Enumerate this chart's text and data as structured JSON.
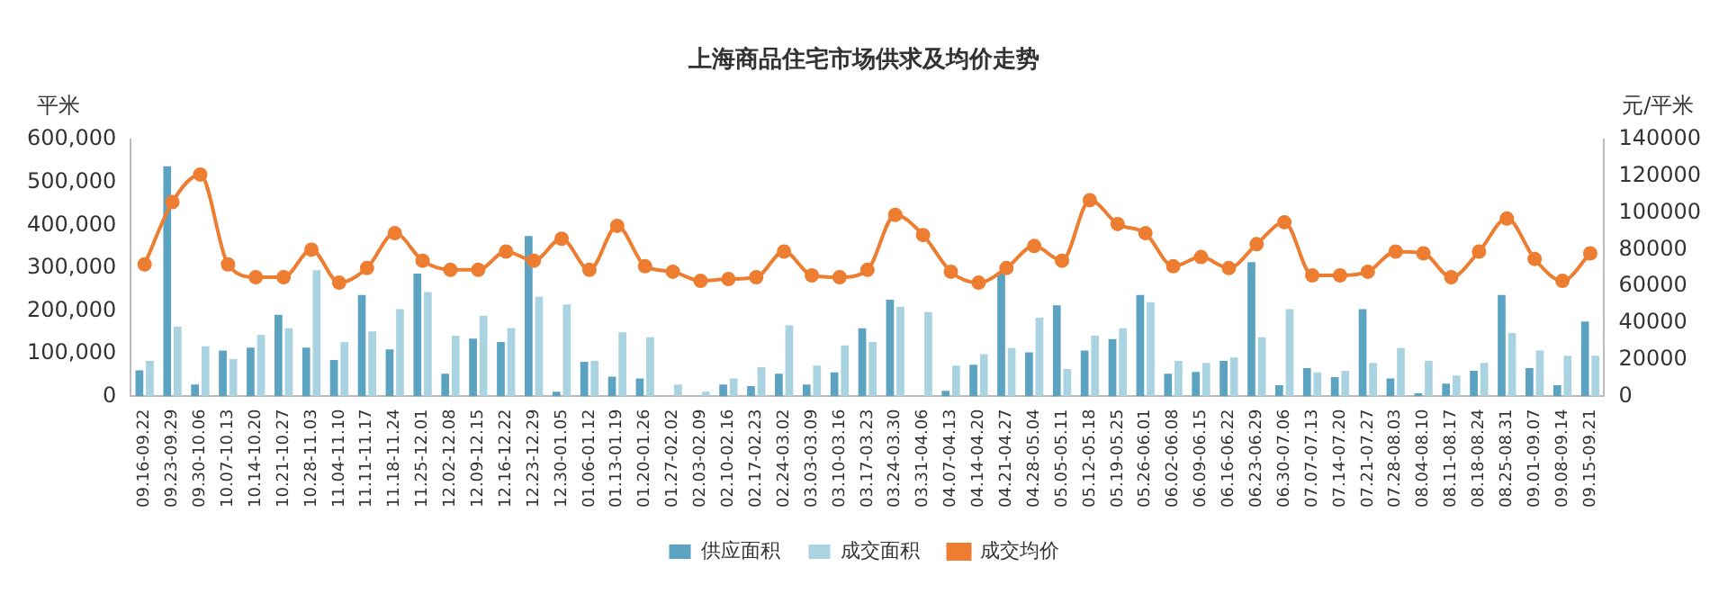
{
  "chart_data": {
    "type": "bar",
    "title": "上海商品住宅市场供求及均价走势",
    "ylabel": "平米",
    "y2label": "元/平米",
    "categories": [
      "09.16-09.22",
      "09.23-09.29",
      "09.30-10.06",
      "10.07-10.13",
      "10.14-10.20",
      "10.21-10.27",
      "10.28-11.03",
      "11.04-11.10",
      "11.11-11.17",
      "11.18-11.24",
      "11.25-12.01",
      "12.02-12.08",
      "12.09-12.15",
      "12.16-12.22",
      "12.23-12.29",
      "12.30-01.05",
      "01.06-01.12",
      "01.13-01.19",
      "01.20-01.26",
      "01.27-02.02",
      "02.03-02.09",
      "02.10-02.16",
      "02.17-02.23",
      "02.24-03.02",
      "03.03-03.09",
      "03.10-03.16",
      "03.17-03.23",
      "03.24-03.30",
      "03.31-04.06",
      "04.07-04.13",
      "04.14-04.20",
      "04.21-04.27",
      "04.28-05.04",
      "05.05-05.11",
      "05.12-05.18",
      "05.19-05.25",
      "05.26-06.01",
      "06.02-06.08",
      "06.09-06.15",
      "06.16-06.22",
      "06.23-06.29",
      "06.30-07.06",
      "07.07-07.13",
      "07.14-07.20",
      "07.21-07.27",
      "07.28-08.03",
      "08.04-08.10",
      "08.11-08.17",
      "08.18-08.24",
      "08.25-08.31",
      "09.01-09.07",
      "09.08-09.14",
      "09.15-09.21"
    ],
    "series": [
      {
        "name": "供应面积",
        "color": "#5ba3c1",
        "values": [
          61000,
          538000,
          28000,
          107000,
          114000,
          191000,
          114000,
          85000,
          237000,
          110000,
          287000,
          53000,
          135000,
          127000,
          375000,
          11000,
          81000,
          46000,
          42000,
          0,
          0,
          28000,
          24000,
          53000,
          28000,
          56000,
          159000,
          226000,
          0,
          13000,
          74000,
          289000,
          103000,
          213000,
          107000,
          134000,
          237000,
          53000,
          57000,
          83000,
          314000,
          26000,
          66000,
          45000,
          204000,
          42000,
          7000,
          30000,
          60000,
          237000,
          66000,
          26000,
          175000
        ]
      },
      {
        "name": "成交面积",
        "color": "#a9d3e0",
        "values": [
          83000,
          163000,
          117000,
          87000,
          144000,
          159000,
          295000,
          127000,
          152000,
          204000,
          244000,
          142000,
          188000,
          160000,
          233000,
          215000,
          83000,
          150000,
          138000,
          28000,
          11000,
          42000,
          68000,
          166000,
          72000,
          119000,
          127000,
          209000,
          197000,
          72000,
          99000,
          113000,
          184000,
          64000,
          142000,
          159000,
          220000,
          83000,
          78000,
          91000,
          138000,
          204000,
          56000,
          60000,
          78000,
          113000,
          83000,
          49000,
          78000,
          148000,
          107000,
          95000,
          95000
        ]
      },
      {
        "name": "成交均价",
        "type": "line",
        "axis": "y2",
        "color": "#ed7d31",
        "values": [
          72000,
          106000,
          121000,
          72000,
          65000,
          65000,
          80000,
          62000,
          70000,
          89000,
          74000,
          69000,
          69000,
          79000,
          74000,
          86000,
          69000,
          93000,
          71000,
          68000,
          63000,
          64000,
          65000,
          79000,
          66000,
          65000,
          69000,
          99000,
          88000,
          68000,
          62000,
          70000,
          82000,
          74000,
          107000,
          94000,
          89000,
          71000,
          76000,
          70000,
          83000,
          95000,
          66000,
          66000,
          68000,
          79000,
          78000,
          65000,
          79000,
          97000,
          75000,
          63000,
          78000
        ]
      }
    ],
    "ylim": [
      0,
      600000
    ],
    "yticks": [
      0,
      {
        "value": 100000,
        "label": "100,000"
      },
      {
        "value": 200000,
        "label": "200,000"
      },
      {
        "value": 300000,
        "label": "300,000"
      },
      {
        "value": 400000,
        "label": "400,000"
      },
      {
        "value": 500000,
        "label": "500,000"
      },
      {
        "value": 600000,
        "label": "600,000"
      }
    ],
    "y2lim": [
      0,
      140000
    ],
    "y2ticks": [
      0,
      20000,
      40000,
      60000,
      80000,
      100000,
      120000,
      140000
    ],
    "grid": false,
    "legend": "bottom",
    "marker": "circle",
    "line_style": "solid"
  }
}
